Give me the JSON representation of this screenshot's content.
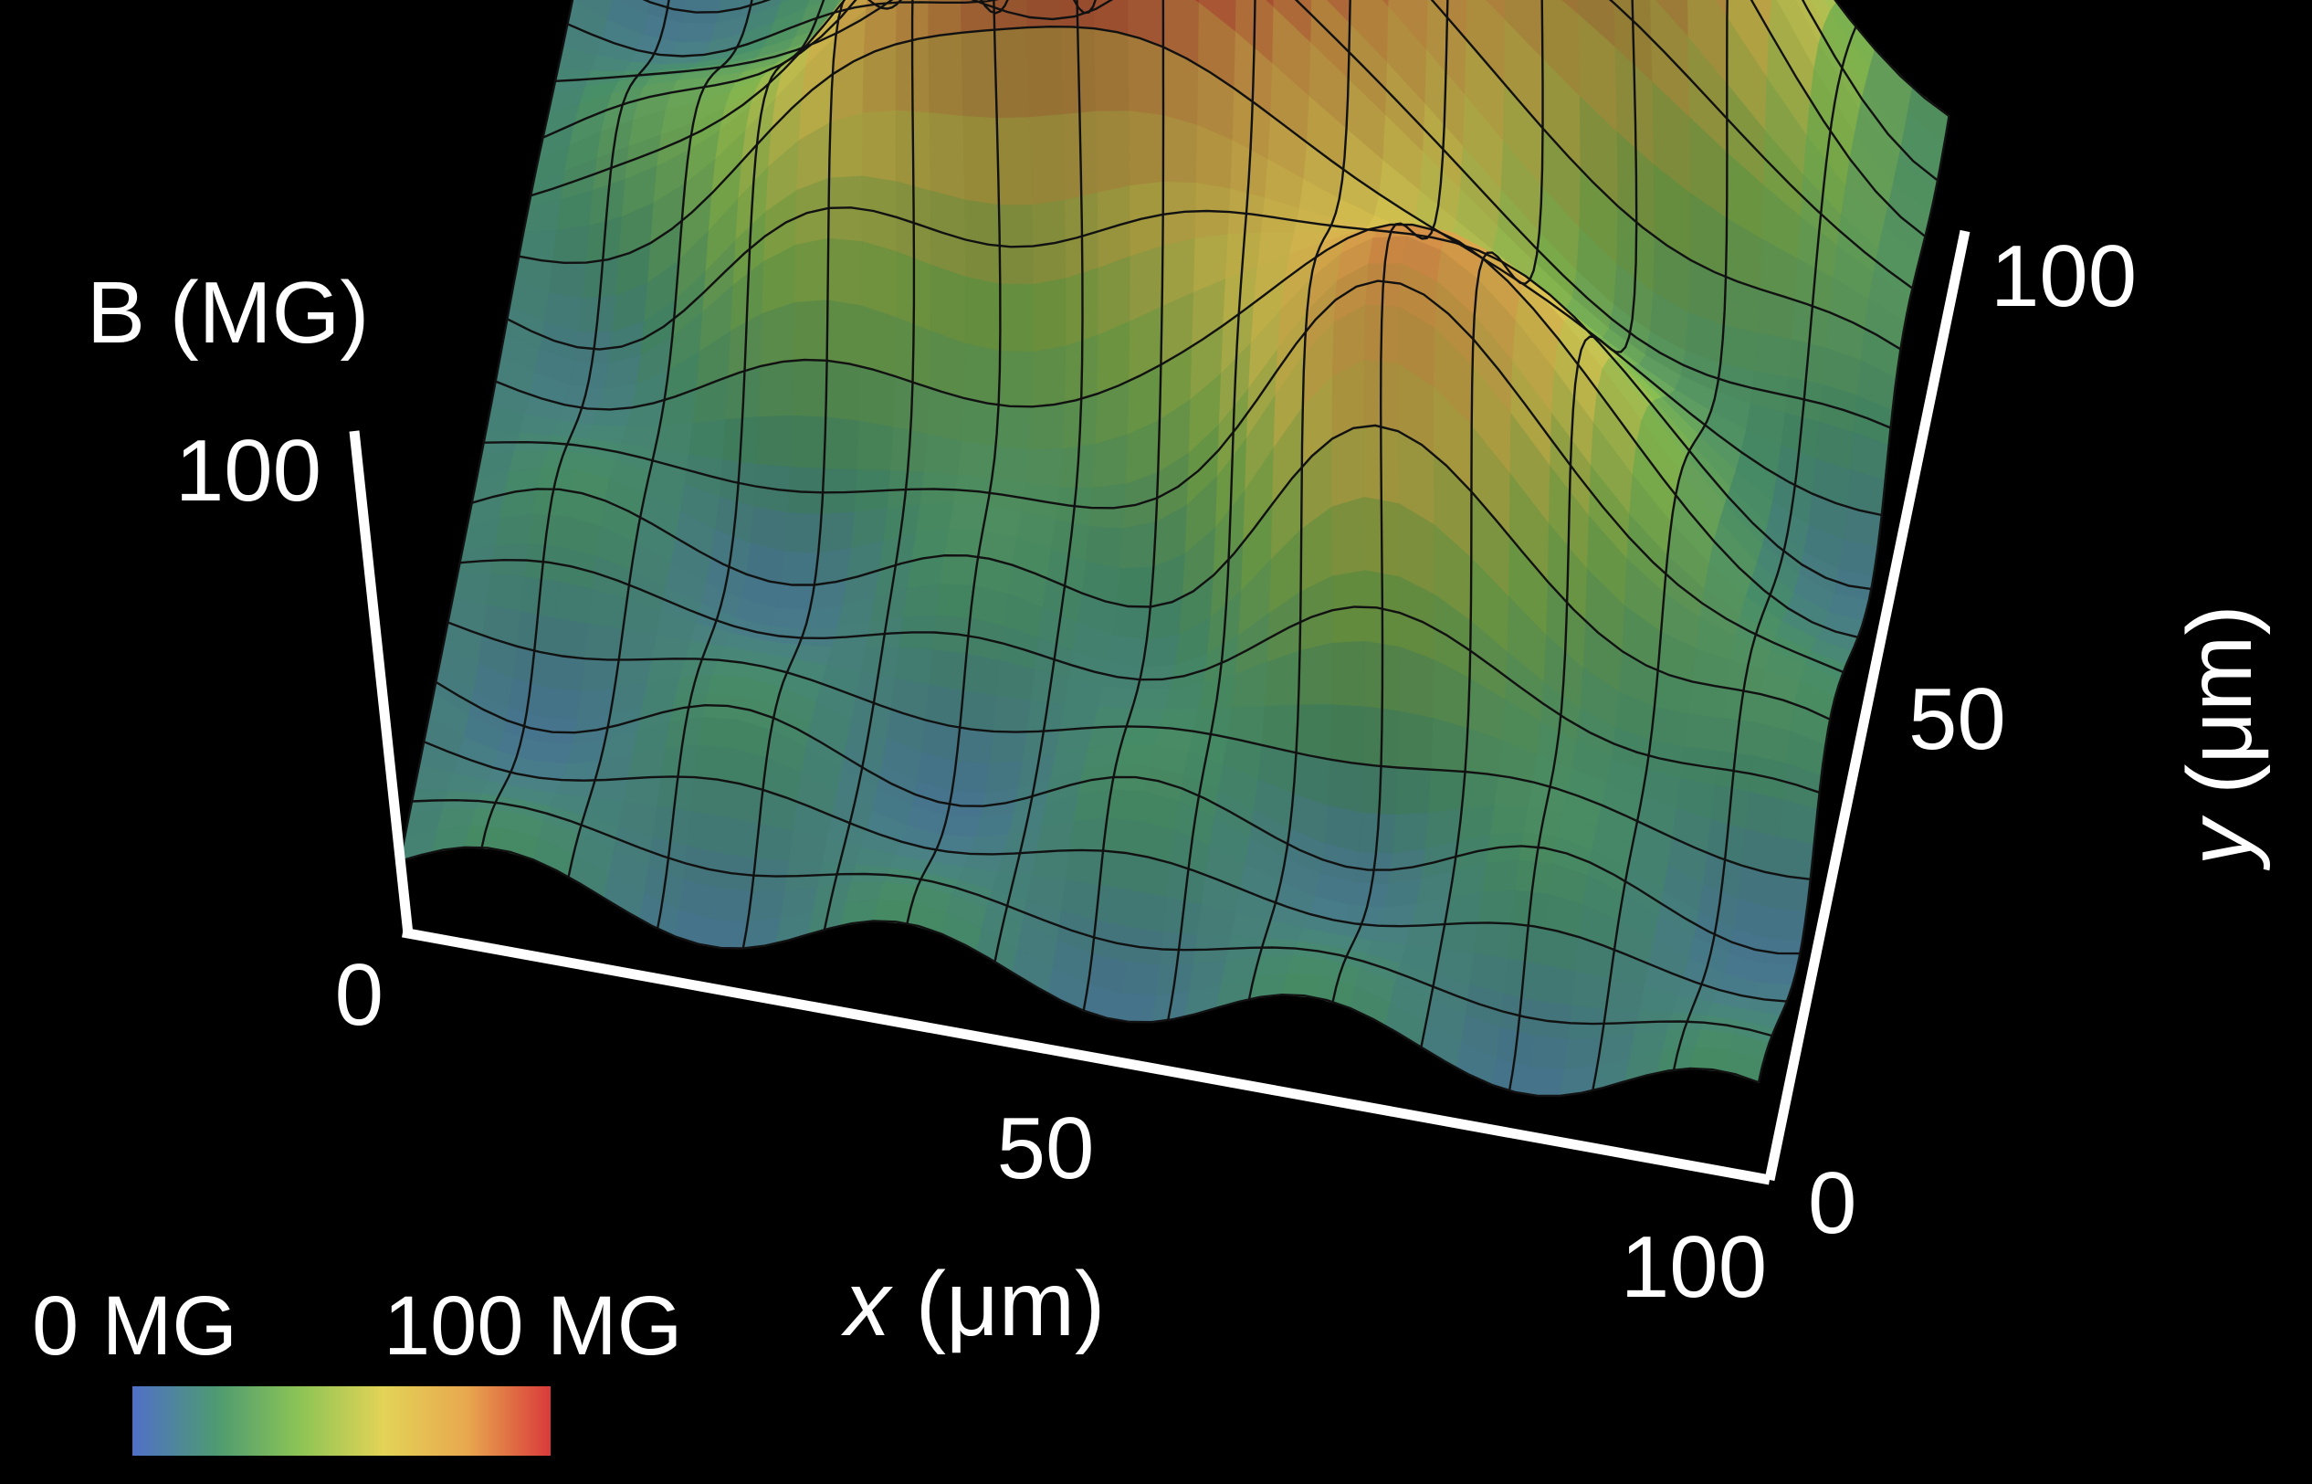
{
  "chart_data": {
    "type": "surface3d",
    "title": "",
    "z_axis": {
      "label": "B (MG)",
      "ticks": [
        "0",
        "100"
      ],
      "range": [
        0,
        100
      ]
    },
    "x_axis": {
      "label": "x (μm)",
      "label_var": "x",
      "label_unit": "(μm)",
      "ticks": [
        "0",
        "50",
        "100"
      ],
      "range": [
        0,
        100
      ]
    },
    "y_axis": {
      "label": "y (μm)",
      "label_var": "y",
      "label_unit": "(μm)",
      "ticks": [
        "0",
        "50",
        "100"
      ],
      "range": [
        0,
        100
      ]
    },
    "colorbar": {
      "min_label": "0 MG",
      "max_label": "100 MG",
      "colors": [
        "#5070c8",
        "#4e9a72",
        "#8cc455",
        "#e3d357",
        "#e8a84f",
        "#d93a3a"
      ]
    },
    "surface_features": [
      {
        "description": "peak",
        "x": 78,
        "y": 92,
        "B": 100
      },
      {
        "description": "peak",
        "x": 55,
        "y": 80,
        "B": 82
      },
      {
        "description": "peak",
        "x": 70,
        "y": 48,
        "B": 84
      },
      {
        "description": "peak",
        "x": 28,
        "y": 68,
        "B": 62
      },
      {
        "description": "peak",
        "x": 45,
        "y": 70,
        "B": 68
      },
      {
        "description": "baseline edges",
        "B": 15
      }
    ]
  }
}
